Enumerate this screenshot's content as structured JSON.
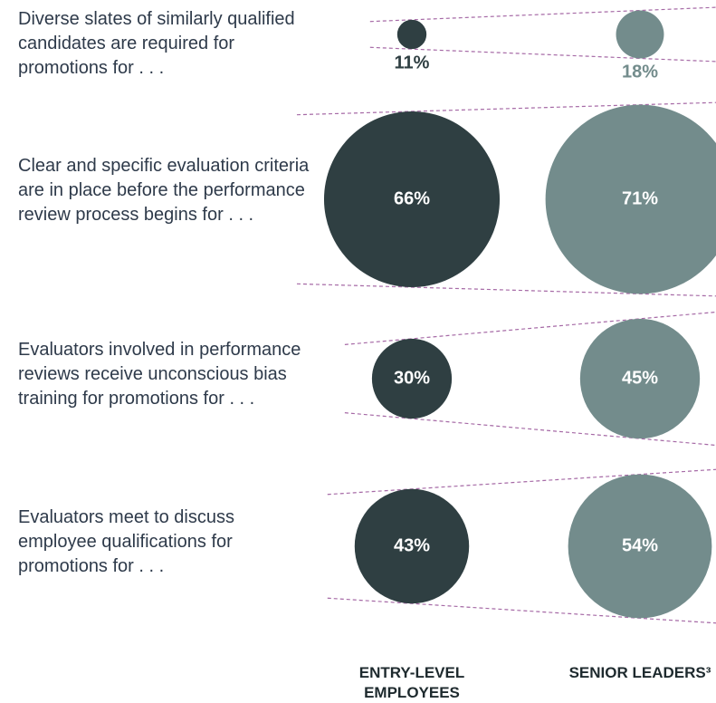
{
  "chart_data": {
    "type": "bubble",
    "categories": [
      "Diverse slates of similarly qualified candidates are required for promotions for . . .",
      "Clear and specific evaluation criteria are in place before the performance review process begins for . . .",
      "Evaluators involved in performance reviews receive unconscious bias training for promotions for . . .",
      "Evaluators meet to discuss employee qualifications for promotions for . . ."
    ],
    "series": [
      {
        "name": "ENTRY-LEVEL EMPLOYEES",
        "color": "#2f3f42",
        "values": [
          11,
          66,
          30,
          43
        ],
        "value_labels": [
          "11%",
          "66%",
          "30%",
          "43%"
        ]
      },
      {
        "name": "SENIOR LEADERS³",
        "color": "#738c8c",
        "values": [
          18,
          71,
          45,
          54
        ],
        "value_labels": [
          "18%",
          "71%",
          "45%",
          "54%"
        ]
      }
    ]
  }
}
